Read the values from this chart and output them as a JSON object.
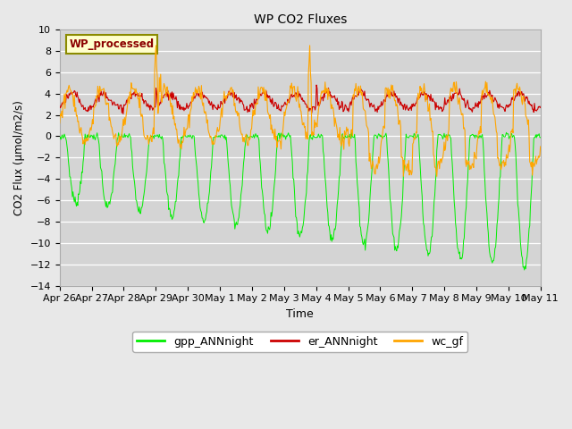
{
  "title": "WP CO2 Fluxes",
  "xlabel": "Time",
  "ylabel": "CO2 Flux (μmol/m2/s)",
  "ylim": [
    -14,
    10
  ],
  "fig_bg_color": "#e8e8e8",
  "plot_bg_color": "#d4d4d4",
  "legend_label": "WP_processed",
  "legend_label_color": "#8b0000",
  "legend_box_facecolor": "#ffffcc",
  "legend_box_edgecolor": "#8b8b00",
  "line_colors": {
    "gpp": "#00ee00",
    "er": "#cc0000",
    "wc": "#ffa500"
  },
  "line_labels": [
    "gpp_ANNnight",
    "er_ANNnight",
    "wc_gf"
  ],
  "x_tick_labels": [
    "Apr 26",
    "Apr 27",
    "Apr 28",
    "Apr 29",
    "Apr 30",
    "May 1",
    "May 2",
    "May 3",
    "May 4",
    "May 5",
    "May 6",
    "May 7",
    "May 8",
    "May 9",
    "May 10",
    "May 11"
  ],
  "n_points": 720,
  "n_days": 15,
  "yticks": [
    10,
    8,
    6,
    4,
    2,
    0,
    -2,
    -4,
    -6,
    -8,
    -10,
    -12,
    -14
  ]
}
